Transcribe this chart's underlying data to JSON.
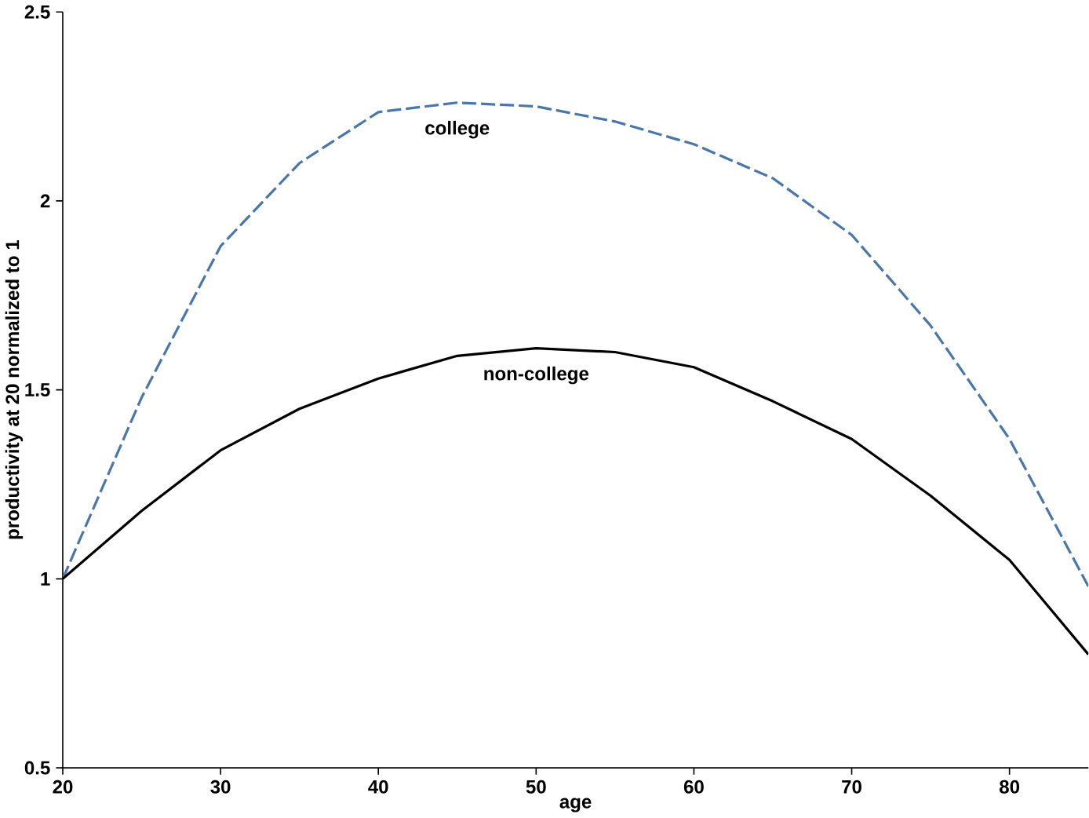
{
  "chart_data": {
    "type": "line",
    "xlabel": "age",
    "ylabel": "productivity at 20 normalized to 1",
    "xlim": [
      20,
      85
    ],
    "ylim": [
      0.5,
      2.5
    ],
    "xticks": [
      20,
      30,
      40,
      50,
      60,
      70,
      80
    ],
    "yticks": [
      0.5,
      1,
      1.5,
      2,
      2.5
    ],
    "grid": false,
    "legend": false,
    "marker": "none",
    "x": [
      20,
      25,
      30,
      35,
      40,
      45,
      50,
      55,
      60,
      65,
      70,
      75,
      80,
      85
    ],
    "series": [
      {
        "name": "college",
        "color": "#4a76a8",
        "line_style": "dashed",
        "values": [
          1.0,
          1.48,
          1.88,
          2.1,
          2.235,
          2.26,
          2.25,
          2.21,
          2.15,
          2.06,
          1.91,
          1.67,
          1.37,
          0.98
        ]
      },
      {
        "name": "non-college",
        "color": "#000000",
        "line_style": "solid",
        "values": [
          1.0,
          1.18,
          1.34,
          1.45,
          1.53,
          1.59,
          1.61,
          1.6,
          1.56,
          1.47,
          1.37,
          1.22,
          1.05,
          0.8
        ]
      }
    ]
  }
}
